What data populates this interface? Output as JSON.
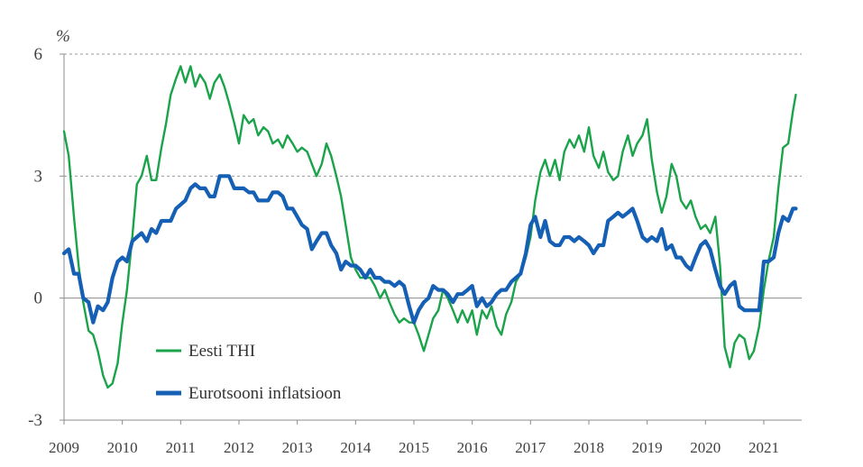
{
  "chart_data": {
    "type": "line",
    "title": "",
    "xlabel": "",
    "ylabel": "",
    "y_unit": "%",
    "ylim": [
      -3,
      6
    ],
    "y_ticks": [
      "6",
      "3",
      "0",
      "-3"
    ],
    "y_tick_values": [
      6,
      3,
      0,
      -3
    ],
    "grid": "horizontal dashed at 6 and 3",
    "x_tick_labels": [
      "2009",
      "2010",
      "2011",
      "2012",
      "2013",
      "2014",
      "2015",
      "2016",
      "2017",
      "2018",
      "2019",
      "2020",
      "2021"
    ],
    "x_range": [
      2009.0,
      2021.65
    ],
    "legend_placement": "bottom-left",
    "series": [
      {
        "name": "Eesti THI",
        "color": "#1aa34a",
        "points": [
          [
            2009.0,
            4.1
          ],
          [
            2009.08,
            3.5
          ],
          [
            2009.17,
            2.0
          ],
          [
            2009.25,
            0.8
          ],
          [
            2009.33,
            -0.1
          ],
          [
            2009.42,
            -0.8
          ],
          [
            2009.5,
            -0.9
          ],
          [
            2009.58,
            -1.3
          ],
          [
            2009.67,
            -1.9
          ],
          [
            2009.75,
            -2.2
          ],
          [
            2009.83,
            -2.1
          ],
          [
            2009.92,
            -1.6
          ],
          [
            2010.0,
            -0.6
          ],
          [
            2010.08,
            0.2
          ],
          [
            2010.17,
            1.5
          ],
          [
            2010.25,
            2.8
          ],
          [
            2010.33,
            3.0
          ],
          [
            2010.42,
            3.5
          ],
          [
            2010.5,
            2.9
          ],
          [
            2010.58,
            2.9
          ],
          [
            2010.67,
            3.7
          ],
          [
            2010.75,
            4.3
          ],
          [
            2010.83,
            5.0
          ],
          [
            2010.92,
            5.4
          ],
          [
            2011.0,
            5.7
          ],
          [
            2011.08,
            5.3
          ],
          [
            2011.17,
            5.7
          ],
          [
            2011.25,
            5.2
          ],
          [
            2011.33,
            5.5
          ],
          [
            2011.42,
            5.3
          ],
          [
            2011.5,
            4.9
          ],
          [
            2011.58,
            5.3
          ],
          [
            2011.67,
            5.5
          ],
          [
            2011.75,
            5.2
          ],
          [
            2011.83,
            4.8
          ],
          [
            2011.92,
            4.3
          ],
          [
            2012.0,
            3.8
          ],
          [
            2012.08,
            4.5
          ],
          [
            2012.17,
            4.3
          ],
          [
            2012.25,
            4.4
          ],
          [
            2012.33,
            4.0
          ],
          [
            2012.42,
            4.2
          ],
          [
            2012.5,
            4.1
          ],
          [
            2012.58,
            3.8
          ],
          [
            2012.67,
            3.9
          ],
          [
            2012.75,
            3.7
          ],
          [
            2012.83,
            4.0
          ],
          [
            2012.92,
            3.8
          ],
          [
            2013.0,
            3.6
          ],
          [
            2013.08,
            3.7
          ],
          [
            2013.17,
            3.6
          ],
          [
            2013.25,
            3.3
          ],
          [
            2013.33,
            3.0
          ],
          [
            2013.42,
            3.3
          ],
          [
            2013.5,
            3.8
          ],
          [
            2013.58,
            3.5
          ],
          [
            2013.67,
            3.0
          ],
          [
            2013.75,
            2.5
          ],
          [
            2013.83,
            1.8
          ],
          [
            2013.92,
            1.0
          ],
          [
            2014.0,
            0.7
          ],
          [
            2014.08,
            0.5
          ],
          [
            2014.17,
            0.5
          ],
          [
            2014.25,
            0.5
          ],
          [
            2014.33,
            0.3
          ],
          [
            2014.42,
            0.0
          ],
          [
            2014.5,
            0.2
          ],
          [
            2014.58,
            -0.1
          ],
          [
            2014.67,
            -0.4
          ],
          [
            2014.75,
            -0.6
          ],
          [
            2014.83,
            -0.5
          ],
          [
            2014.92,
            -0.6
          ],
          [
            2015.0,
            -0.6
          ],
          [
            2015.08,
            -0.9
          ],
          [
            2015.17,
            -1.3
          ],
          [
            2015.25,
            -0.9
          ],
          [
            2015.33,
            -0.5
          ],
          [
            2015.42,
            -0.3
          ],
          [
            2015.5,
            0.2
          ],
          [
            2015.58,
            0.0
          ],
          [
            2015.67,
            -0.3
          ],
          [
            2015.75,
            -0.6
          ],
          [
            2015.83,
            -0.3
          ],
          [
            2015.92,
            -0.6
          ],
          [
            2016.0,
            -0.3
          ],
          [
            2016.08,
            -0.9
          ],
          [
            2016.17,
            -0.3
          ],
          [
            2016.25,
            -0.5
          ],
          [
            2016.33,
            -0.2
          ],
          [
            2016.42,
            -0.7
          ],
          [
            2016.5,
            -0.9
          ],
          [
            2016.58,
            -0.4
          ],
          [
            2016.67,
            -0.1
          ],
          [
            2016.75,
            0.4
          ],
          [
            2016.83,
            0.6
          ],
          [
            2016.92,
            1.0
          ],
          [
            2017.0,
            1.5
          ],
          [
            2017.08,
            2.4
          ],
          [
            2017.17,
            3.1
          ],
          [
            2017.25,
            3.4
          ],
          [
            2017.33,
            3.0
          ],
          [
            2017.42,
            3.4
          ],
          [
            2017.5,
            2.9
          ],
          [
            2017.58,
            3.6
          ],
          [
            2017.67,
            3.9
          ],
          [
            2017.75,
            3.7
          ],
          [
            2017.83,
            4.0
          ],
          [
            2017.92,
            3.6
          ],
          [
            2018.0,
            4.2
          ],
          [
            2018.08,
            3.5
          ],
          [
            2018.17,
            3.2
          ],
          [
            2018.25,
            3.6
          ],
          [
            2018.33,
            3.1
          ],
          [
            2018.42,
            2.9
          ],
          [
            2018.5,
            3.0
          ],
          [
            2018.58,
            3.6
          ],
          [
            2018.67,
            4.0
          ],
          [
            2018.75,
            3.5
          ],
          [
            2018.83,
            3.8
          ],
          [
            2018.92,
            4.0
          ],
          [
            2019.0,
            4.4
          ],
          [
            2019.08,
            3.4
          ],
          [
            2019.17,
            2.6
          ],
          [
            2019.25,
            2.1
          ],
          [
            2019.33,
            2.5
          ],
          [
            2019.42,
            3.3
          ],
          [
            2019.5,
            3.0
          ],
          [
            2019.58,
            2.4
          ],
          [
            2019.67,
            2.2
          ],
          [
            2019.75,
            2.4
          ],
          [
            2019.83,
            2.0
          ],
          [
            2019.92,
            1.7
          ],
          [
            2020.0,
            1.8
          ],
          [
            2020.08,
            1.6
          ],
          [
            2020.17,
            2.0
          ],
          [
            2020.25,
            0.8
          ],
          [
            2020.33,
            -1.2
          ],
          [
            2020.42,
            -1.7
          ],
          [
            2020.5,
            -1.1
          ],
          [
            2020.58,
            -0.9
          ],
          [
            2020.67,
            -1.0
          ],
          [
            2020.75,
            -1.5
          ],
          [
            2020.83,
            -1.3
          ],
          [
            2020.92,
            -0.7
          ],
          [
            2021.0,
            0.2
          ],
          [
            2021.08,
            0.9
          ],
          [
            2021.17,
            1.5
          ],
          [
            2021.25,
            2.7
          ],
          [
            2021.33,
            3.7
          ],
          [
            2021.42,
            3.8
          ],
          [
            2021.5,
            4.6
          ],
          [
            2021.55,
            5.0
          ]
        ]
      },
      {
        "name": "Eurotsooni inflatsioon",
        "color": "#1560b4",
        "points": [
          [
            2009.0,
            1.1
          ],
          [
            2009.08,
            1.2
          ],
          [
            2009.17,
            0.6
          ],
          [
            2009.25,
            0.6
          ],
          [
            2009.33,
            0.0
          ],
          [
            2009.42,
            -0.1
          ],
          [
            2009.5,
            -0.6
          ],
          [
            2009.58,
            -0.2
          ],
          [
            2009.67,
            -0.3
          ],
          [
            2009.75,
            -0.1
          ],
          [
            2009.83,
            0.5
          ],
          [
            2009.92,
            0.9
          ],
          [
            2010.0,
            1.0
          ],
          [
            2010.08,
            0.9
          ],
          [
            2010.17,
            1.4
          ],
          [
            2010.25,
            1.5
          ],
          [
            2010.33,
            1.6
          ],
          [
            2010.42,
            1.4
          ],
          [
            2010.5,
            1.7
          ],
          [
            2010.58,
            1.6
          ],
          [
            2010.67,
            1.9
          ],
          [
            2010.75,
            1.9
          ],
          [
            2010.83,
            1.9
          ],
          [
            2010.92,
            2.2
          ],
          [
            2011.0,
            2.3
          ],
          [
            2011.08,
            2.4
          ],
          [
            2011.17,
            2.7
          ],
          [
            2011.25,
            2.8
          ],
          [
            2011.33,
            2.7
          ],
          [
            2011.42,
            2.7
          ],
          [
            2011.5,
            2.5
          ],
          [
            2011.58,
            2.5
          ],
          [
            2011.67,
            3.0
          ],
          [
            2011.75,
            3.0
          ],
          [
            2011.83,
            3.0
          ],
          [
            2011.92,
            2.7
          ],
          [
            2012.0,
            2.7
          ],
          [
            2012.08,
            2.7
          ],
          [
            2012.17,
            2.6
          ],
          [
            2012.25,
            2.6
          ],
          [
            2012.33,
            2.4
          ],
          [
            2012.42,
            2.4
          ],
          [
            2012.5,
            2.4
          ],
          [
            2012.58,
            2.6
          ],
          [
            2012.67,
            2.6
          ],
          [
            2012.75,
            2.5
          ],
          [
            2012.83,
            2.2
          ],
          [
            2012.92,
            2.2
          ],
          [
            2013.0,
            2.0
          ],
          [
            2013.08,
            1.8
          ],
          [
            2013.17,
            1.7
          ],
          [
            2013.25,
            1.2
          ],
          [
            2013.33,
            1.4
          ],
          [
            2013.42,
            1.6
          ],
          [
            2013.5,
            1.6
          ],
          [
            2013.58,
            1.3
          ],
          [
            2013.67,
            1.1
          ],
          [
            2013.75,
            0.7
          ],
          [
            2013.83,
            0.9
          ],
          [
            2013.92,
            0.8
          ],
          [
            2014.0,
            0.8
          ],
          [
            2014.08,
            0.7
          ],
          [
            2014.17,
            0.5
          ],
          [
            2014.25,
            0.7
          ],
          [
            2014.33,
            0.5
          ],
          [
            2014.42,
            0.5
          ],
          [
            2014.5,
            0.4
          ],
          [
            2014.58,
            0.4
          ],
          [
            2014.67,
            0.3
          ],
          [
            2014.75,
            0.4
          ],
          [
            2014.83,
            0.3
          ],
          [
            2014.92,
            -0.2
          ],
          [
            2015.0,
            -0.6
          ],
          [
            2015.08,
            -0.3
          ],
          [
            2015.17,
            -0.1
          ],
          [
            2015.25,
            0.0
          ],
          [
            2015.33,
            0.3
          ],
          [
            2015.42,
            0.2
          ],
          [
            2015.5,
            0.2
          ],
          [
            2015.58,
            0.1
          ],
          [
            2015.67,
            -0.1
          ],
          [
            2015.75,
            0.1
          ],
          [
            2015.83,
            0.1
          ],
          [
            2015.92,
            0.2
          ],
          [
            2016.0,
            0.3
          ],
          [
            2016.08,
            -0.2
          ],
          [
            2016.17,
            0.0
          ],
          [
            2016.25,
            -0.2
          ],
          [
            2016.33,
            -0.1
          ],
          [
            2016.42,
            0.1
          ],
          [
            2016.5,
            0.2
          ],
          [
            2016.58,
            0.2
          ],
          [
            2016.67,
            0.4
          ],
          [
            2016.75,
            0.5
          ],
          [
            2016.83,
            0.6
          ],
          [
            2016.92,
            1.1
          ],
          [
            2017.0,
            1.8
          ],
          [
            2017.08,
            2.0
          ],
          [
            2017.17,
            1.5
          ],
          [
            2017.25,
            1.9
          ],
          [
            2017.33,
            1.4
          ],
          [
            2017.42,
            1.3
          ],
          [
            2017.5,
            1.3
          ],
          [
            2017.58,
            1.5
          ],
          [
            2017.67,
            1.5
          ],
          [
            2017.75,
            1.4
          ],
          [
            2017.83,
            1.5
          ],
          [
            2017.92,
            1.4
          ],
          [
            2018.0,
            1.3
          ],
          [
            2018.08,
            1.1
          ],
          [
            2018.17,
            1.3
          ],
          [
            2018.25,
            1.3
          ],
          [
            2018.33,
            1.9
          ],
          [
            2018.42,
            2.0
          ],
          [
            2018.5,
            2.1
          ],
          [
            2018.58,
            2.0
          ],
          [
            2018.67,
            2.1
          ],
          [
            2018.75,
            2.2
          ],
          [
            2018.83,
            1.9
          ],
          [
            2018.92,
            1.5
          ],
          [
            2019.0,
            1.4
          ],
          [
            2019.08,
            1.5
          ],
          [
            2019.17,
            1.4
          ],
          [
            2019.25,
            1.7
          ],
          [
            2019.33,
            1.2
          ],
          [
            2019.42,
            1.3
          ],
          [
            2019.5,
            1.0
          ],
          [
            2019.58,
            1.0
          ],
          [
            2019.67,
            0.8
          ],
          [
            2019.75,
            0.7
          ],
          [
            2019.83,
            1.0
          ],
          [
            2019.92,
            1.3
          ],
          [
            2020.0,
            1.4
          ],
          [
            2020.08,
            1.2
          ],
          [
            2020.17,
            0.7
          ],
          [
            2020.25,
            0.3
          ],
          [
            2020.33,
            0.1
          ],
          [
            2020.42,
            0.3
          ],
          [
            2020.5,
            0.4
          ],
          [
            2020.58,
            -0.2
          ],
          [
            2020.67,
            -0.3
          ],
          [
            2020.75,
            -0.3
          ],
          [
            2020.83,
            -0.3
          ],
          [
            2020.92,
            -0.3
          ],
          [
            2021.0,
            0.9
          ],
          [
            2021.08,
            0.9
          ],
          [
            2021.17,
            1.0
          ],
          [
            2021.25,
            1.6
          ],
          [
            2021.33,
            2.0
          ],
          [
            2021.42,
            1.9
          ],
          [
            2021.5,
            2.2
          ],
          [
            2021.55,
            2.2
          ]
        ]
      }
    ]
  }
}
